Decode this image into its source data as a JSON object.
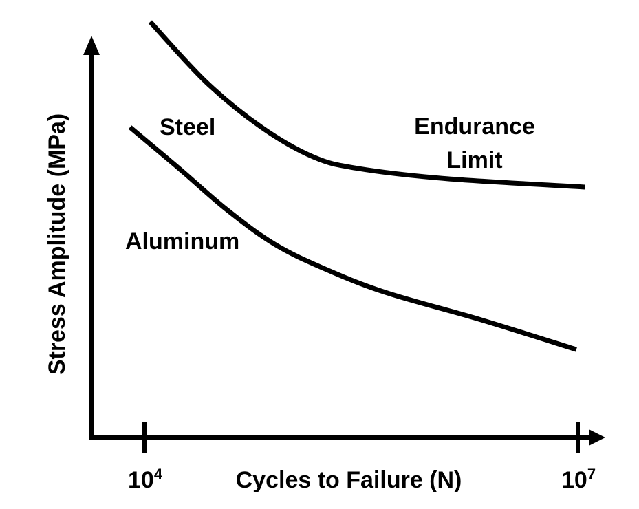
{
  "chart_data": {
    "type": "line",
    "title": "",
    "xlabel": "Cycles to Failure (N)",
    "ylabel": "Stress Amplitude (MPa)",
    "x_scale": "log10",
    "xlim_log10": [
      3.6,
      7.2
    ],
    "ylim": [
      0,
      105
    ],
    "y_units_note": "schematic, no numeric scale",
    "grid": false,
    "x_ticks": [
      {
        "log10": 4,
        "base": "10",
        "exp": "4"
      },
      {
        "log10": 7,
        "base": "10",
        "exp": "7"
      }
    ],
    "series": [
      {
        "name": "Steel",
        "x_log10": [
          4.04,
          4.43,
          4.81,
          5.17,
          5.48,
          6.1,
          7.05
        ],
        "y": [
          104.9,
          89.6,
          78.3,
          70.8,
          67.9,
          65.3,
          63.2
        ],
        "color": "#000000"
      },
      {
        "name": "Aluminum",
        "x_log10": [
          3.9,
          4.24,
          4.57,
          4.9,
          5.24,
          5.67,
          6.33,
          6.99
        ],
        "y": [
          78.3,
          67.9,
          57.5,
          48.8,
          42.7,
          36.6,
          29.7,
          22.2
        ],
        "color": "#000000"
      }
    ],
    "annotations": {
      "steel": "Steel",
      "aluminum": "Aluminum",
      "endurance_line1": "Endurance",
      "endurance_line2": "Limit"
    }
  }
}
